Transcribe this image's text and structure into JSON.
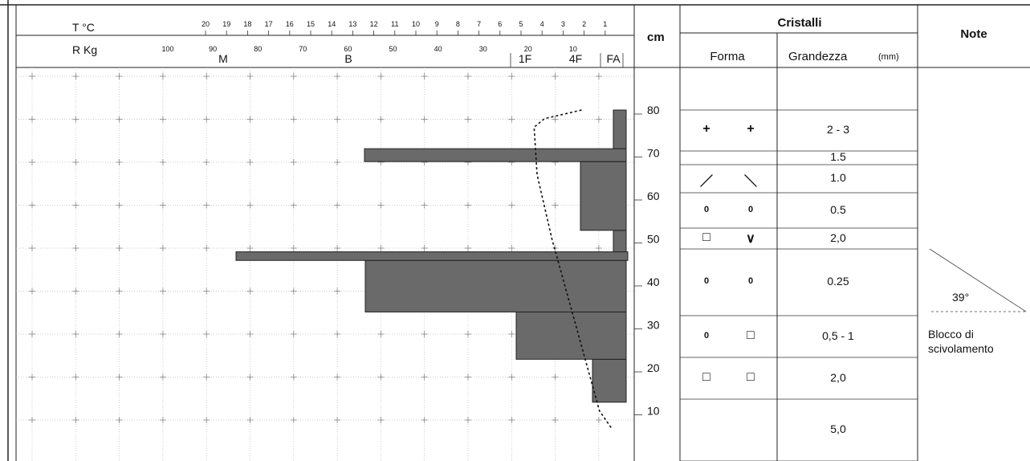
{
  "header": {
    "temp_label": "T °C",
    "ram_label": "R Kg",
    "cm_label": "cm",
    "cristalli_label": "Cristalli",
    "forma_label": "Forma",
    "grandezza_label": "Grandezza",
    "mm_label": "(mm)",
    "note_label": "Note"
  },
  "temperature_ticks": [
    "20",
    "19",
    "18",
    "17",
    "16",
    "15",
    "14",
    "13",
    "12",
    "11",
    "10",
    "9",
    "8",
    "7",
    "6",
    "5",
    "4",
    "3",
    "2",
    "1"
  ],
  "ram_ticks": [
    "100",
    "90",
    "80",
    "70",
    "60",
    "50",
    "40",
    "30",
    "20",
    "10"
  ],
  "hardness_labels": [
    "M",
    "B",
    "1F",
    "4F",
    "FA"
  ],
  "depth_ticks": [
    "80",
    "70",
    "60",
    "50",
    "40",
    "30",
    "20",
    "10"
  ],
  "crystal_rows": [
    {
      "forma_left": "+",
      "forma_right": "+",
      "size": "2 - 3"
    },
    {
      "forma_left": "",
      "forma_right": "",
      "size": "1.5"
    },
    {
      "forma_left": "／",
      "forma_right": "＼",
      "size": "1.0"
    },
    {
      "forma_left": "0",
      "forma_right": "0",
      "size": "0.5"
    },
    {
      "forma_left": "□",
      "forma_right": "∨",
      "size": "2,0"
    },
    {
      "forma_left": "0",
      "forma_right": "0",
      "size": "0.25"
    },
    {
      "forma_left": "0",
      "forma_right": "□",
      "size": "0,5 - 1"
    },
    {
      "forma_left": "□",
      "forma_right": "□",
      "size": "2,0"
    },
    {
      "forma_left": "",
      "forma_right": "",
      "size": "5,0"
    }
  ],
  "notes": {
    "angle": "39°",
    "line1": "Blocco di",
    "line2": "scivolamento"
  },
  "chart_data": {
    "type": "bar",
    "y_axis": "cm",
    "ylim": [
      0,
      90
    ],
    "ram_xlim": [
      0,
      100
    ],
    "hardness_layers": [
      {
        "from_cm": 12,
        "to_cm": 22,
        "hardness": "FA-4F"
      },
      {
        "from_cm": 22,
        "to_cm": 33,
        "hardness": "1F"
      },
      {
        "from_cm": 33,
        "to_cm": 45,
        "hardness": "B"
      },
      {
        "from_cm": 45,
        "to_cm": 47,
        "hardness": "M"
      },
      {
        "from_cm": 47,
        "to_cm": 52,
        "hardness": "FA"
      },
      {
        "from_cm": 52,
        "to_cm": 68,
        "hardness": "4F"
      },
      {
        "from_cm": 68,
        "to_cm": 71,
        "hardness": "B"
      },
      {
        "from_cm": 71,
        "to_cm": 80,
        "hardness": "FA"
      }
    ],
    "temperature_profile": [
      {
        "depth_cm": 80,
        "temp_c": -3
      },
      {
        "depth_cm": 78,
        "temp_c": -5.5
      },
      {
        "depth_cm": 76,
        "temp_c": -6.2
      },
      {
        "depth_cm": 65,
        "temp_c": -6
      },
      {
        "depth_cm": 50,
        "temp_c": -5
      },
      {
        "depth_cm": 40,
        "temp_c": -4.2
      },
      {
        "depth_cm": 30,
        "temp_c": -3.4
      },
      {
        "depth_cm": 20,
        "temp_c": -2.6
      },
      {
        "depth_cm": 10,
        "temp_c": -1.8
      },
      {
        "depth_cm": 6,
        "temp_c": -1
      }
    ]
  }
}
